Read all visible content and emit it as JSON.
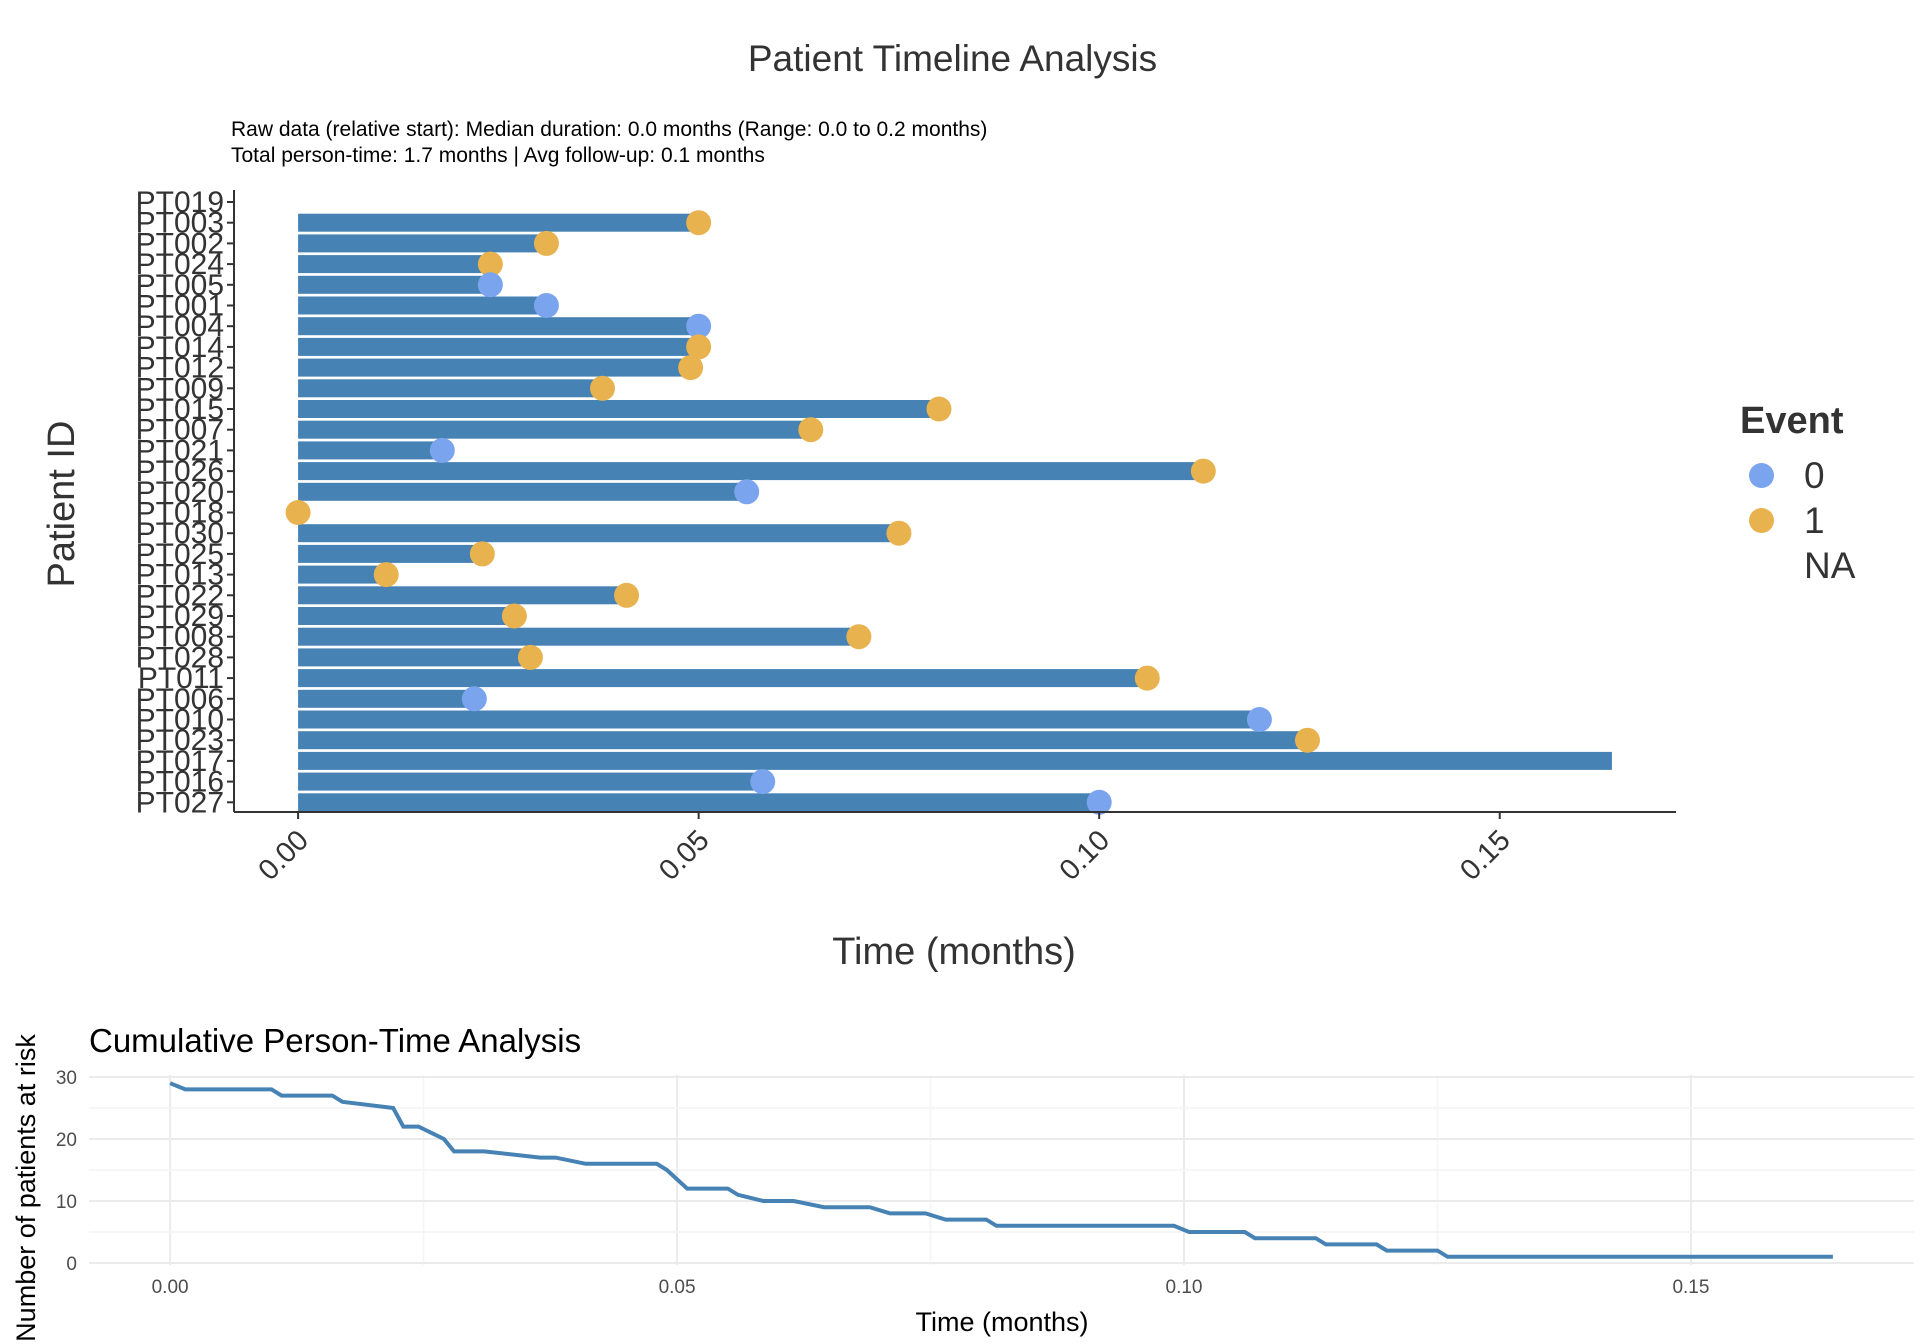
{
  "chart_data": [
    {
      "type": "bar",
      "orientation": "horizontal",
      "title": "Patient Timeline Analysis",
      "subtitle_lines": [
        "Raw data (relative start): Median duration: 0.0 months (Range: 0.0 to 0.2 months)",
        "Total person-time: 1.7 months | Avg follow-up: 0.1 months"
      ],
      "xlabel": "Time (months)",
      "ylabel": "Patient ID",
      "xlim": [
        -0.008,
        0.172
      ],
      "x_ticks": [
        "0.00",
        "0.05",
        "0.10",
        "0.15"
      ],
      "x_tick_values": [
        0,
        0.05,
        0.1,
        0.15
      ],
      "legend": {
        "title": "Event",
        "placement": "right",
        "items": [
          {
            "label": "0",
            "color": "#7BA4EE"
          },
          {
            "label": "1",
            "color": "#E8B24E"
          },
          {
            "label": "NA",
            "color": ""
          }
        ]
      },
      "bar_color": "#4682B4",
      "categories": [
        "PT019",
        "PT003",
        "PT002",
        "PT024",
        "PT005",
        "PT001",
        "PT004",
        "PT014",
        "PT012",
        "PT009",
        "PT015",
        "PT007",
        "PT021",
        "PT026",
        "PT020",
        "PT018",
        "PT030",
        "PT025",
        "PT013",
        "PT022",
        "PT029",
        "PT008",
        "PT028",
        "PT011",
        "PT006",
        "PT010",
        "PT023",
        "PT017",
        "PT016",
        "PT027"
      ],
      "durations": [
        null,
        0.05,
        0.031,
        0.024,
        0.024,
        0.031,
        0.05,
        0.05,
        0.049,
        0.038,
        0.08,
        0.064,
        0.018,
        0.113,
        0.056,
        0.0,
        0.075,
        0.023,
        0.011,
        0.041,
        0.027,
        0.07,
        0.029,
        0.106,
        0.022,
        0.12,
        0.126,
        0.164,
        0.058,
        0.1
      ],
      "events": [
        null,
        "1",
        "1",
        "1",
        "0",
        "0",
        "0",
        "1",
        "1",
        "1",
        "1",
        "1",
        "0",
        "1",
        "0",
        "1",
        "1",
        "1",
        "1",
        "1",
        "1",
        "1",
        "1",
        "1",
        "0",
        "0",
        "1",
        "NA",
        "0",
        "0"
      ]
    },
    {
      "type": "line",
      "title": "Cumulative Person-Time Analysis",
      "xlabel": "Time (months)",
      "ylabel": "Number of patients at risk",
      "xlim": [
        -0.008,
        0.172
      ],
      "ylim": [
        0,
        30
      ],
      "x_ticks": [
        "0.00",
        "0.05",
        "0.10",
        "0.15"
      ],
      "x_tick_values": [
        0,
        0.05,
        0.1,
        0.15
      ],
      "y_ticks": [
        "0",
        "10",
        "20",
        "30"
      ],
      "y_tick_values": [
        0,
        10,
        20,
        30
      ],
      "grid": true,
      "color": "#4682B4",
      "x": [
        0.0,
        0.0015,
        0.01,
        0.011,
        0.016,
        0.017,
        0.022,
        0.023,
        0.0245,
        0.027,
        0.028,
        0.031,
        0.0365,
        0.038,
        0.041,
        0.048,
        0.049,
        0.051,
        0.055,
        0.056,
        0.0585,
        0.0615,
        0.0645,
        0.069,
        0.071,
        0.0745,
        0.0765,
        0.0805,
        0.0815,
        0.099,
        0.1005,
        0.106,
        0.107,
        0.113,
        0.114,
        0.119,
        0.12,
        0.125,
        0.126,
        0.164
      ],
      "y": [
        29,
        28,
        28,
        27,
        27,
        26,
        25,
        22,
        22,
        20,
        18,
        18,
        17,
        17,
        16,
        16,
        15,
        12,
        12,
        11,
        10,
        10,
        9,
        9,
        8,
        8,
        7,
        7,
        6,
        6,
        5,
        5,
        4,
        4,
        3,
        3,
        2,
        2,
        1,
        1
      ]
    }
  ]
}
